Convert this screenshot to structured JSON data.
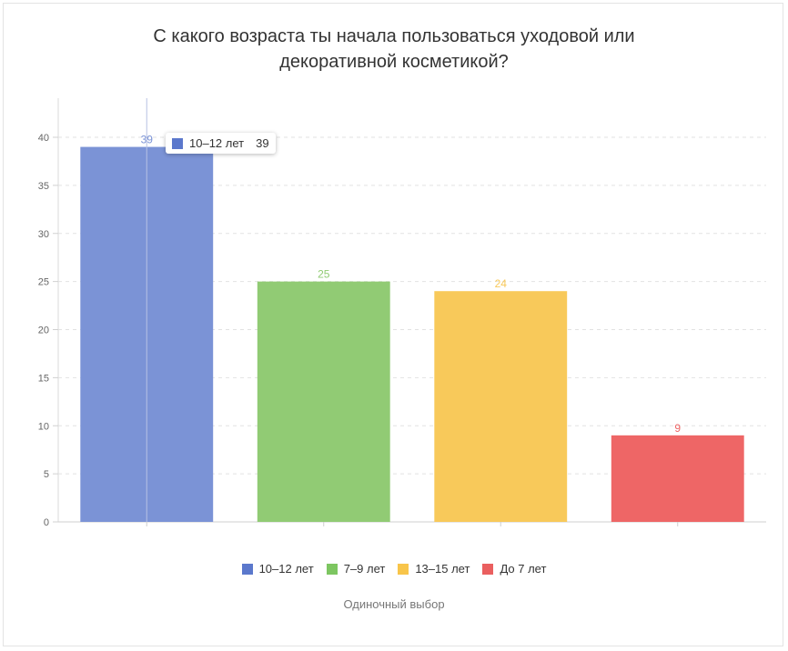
{
  "title_line1": "С какого возраста ты начала пользоваться уходовой или",
  "title_line2": "декоративной косметикой?",
  "subtitle": "Одиночный выбор",
  "tooltip": {
    "label": "10–12 лет",
    "value": "39",
    "color": "#5b78cc"
  },
  "chart_data": {
    "type": "bar",
    "title": "С какого возраста ты начала пользоваться уходовой или декоративной косметикой?",
    "categories": [
      "10–12 лет",
      "7–9 лет",
      "13–15 лет",
      "До 7 лет"
    ],
    "values": [
      39,
      25,
      24,
      9
    ],
    "colors": [
      "#7b93d6",
      "#91cb74",
      "#f8c95a",
      "#ee6666"
    ],
    "legend_colors": [
      "#5b78cc",
      "#7dc661",
      "#f8c54a",
      "#ea5f5f"
    ],
    "ylim": [
      0,
      40
    ],
    "yticks": [
      0,
      5,
      10,
      15,
      20,
      25,
      30,
      35,
      40
    ],
    "grid": true,
    "legend_position": "bottom"
  }
}
